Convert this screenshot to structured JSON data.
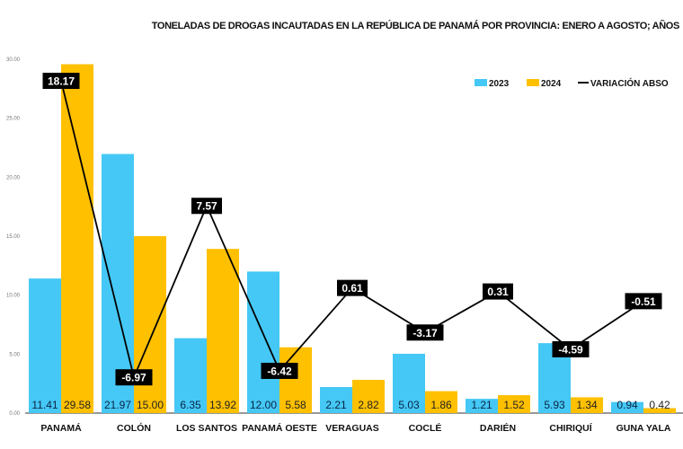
{
  "chart_data": {
    "type": "bar",
    "title": "TONELADAS DE DROGAS INCAUTADAS EN LA REPÚBLICA DE PANAMÁ POR PROVINCIA: ENERO A AGOSTO; AÑOS",
    "categories": [
      "PANAMÁ",
      "COLÓN",
      "LOS SANTOS",
      "PANAMÁ OESTE",
      "VERAGUAS",
      "COCLÉ",
      "DARIÉN",
      "CHIRIQUÍ",
      "GUNA YALA"
    ],
    "series": [
      {
        "name": "2023",
        "type": "bar",
        "color": "#45C8F5",
        "values": [
          11.41,
          21.97,
          6.35,
          12.0,
          2.21,
          5.03,
          1.21,
          5.93,
          0.94
        ],
        "labels": [
          "11.41",
          "21.97",
          "6.35",
          "12.00",
          "2.21",
          "5.03",
          "1.21",
          "5.93",
          "0.94"
        ]
      },
      {
        "name": "2024",
        "type": "bar",
        "color": "#FFC000",
        "values": [
          29.58,
          15.0,
          13.92,
          5.58,
          2.82,
          1.86,
          1.52,
          1.34,
          0.42
        ],
        "labels": [
          "29.58",
          "15.00",
          "13.92",
          "5.58",
          "2.82",
          "1.86",
          "1.52",
          "1.34",
          "0.42"
        ]
      },
      {
        "name": "VARIACIÓN ABSO",
        "type": "line",
        "color": "#000000",
        "axis": "secondary",
        "values": [
          18.17,
          -6.97,
          7.57,
          -6.42,
          0.61,
          -3.17,
          0.31,
          -4.59,
          -0.51
        ],
        "labels": [
          "18.17",
          "-6.97",
          "7.57",
          "-6.42",
          "0.61",
          "-3.17",
          "0.31",
          "-4.59",
          "-0.51"
        ]
      }
    ],
    "ylim": [
      0,
      30
    ],
    "y2lim": [
      -10,
      20
    ],
    "yticks": [
      "0.00",
      "5.00",
      "10.00",
      "15.00",
      "20.00",
      "25.00",
      "30.00"
    ],
    "grid": false,
    "legend": "top-right"
  }
}
